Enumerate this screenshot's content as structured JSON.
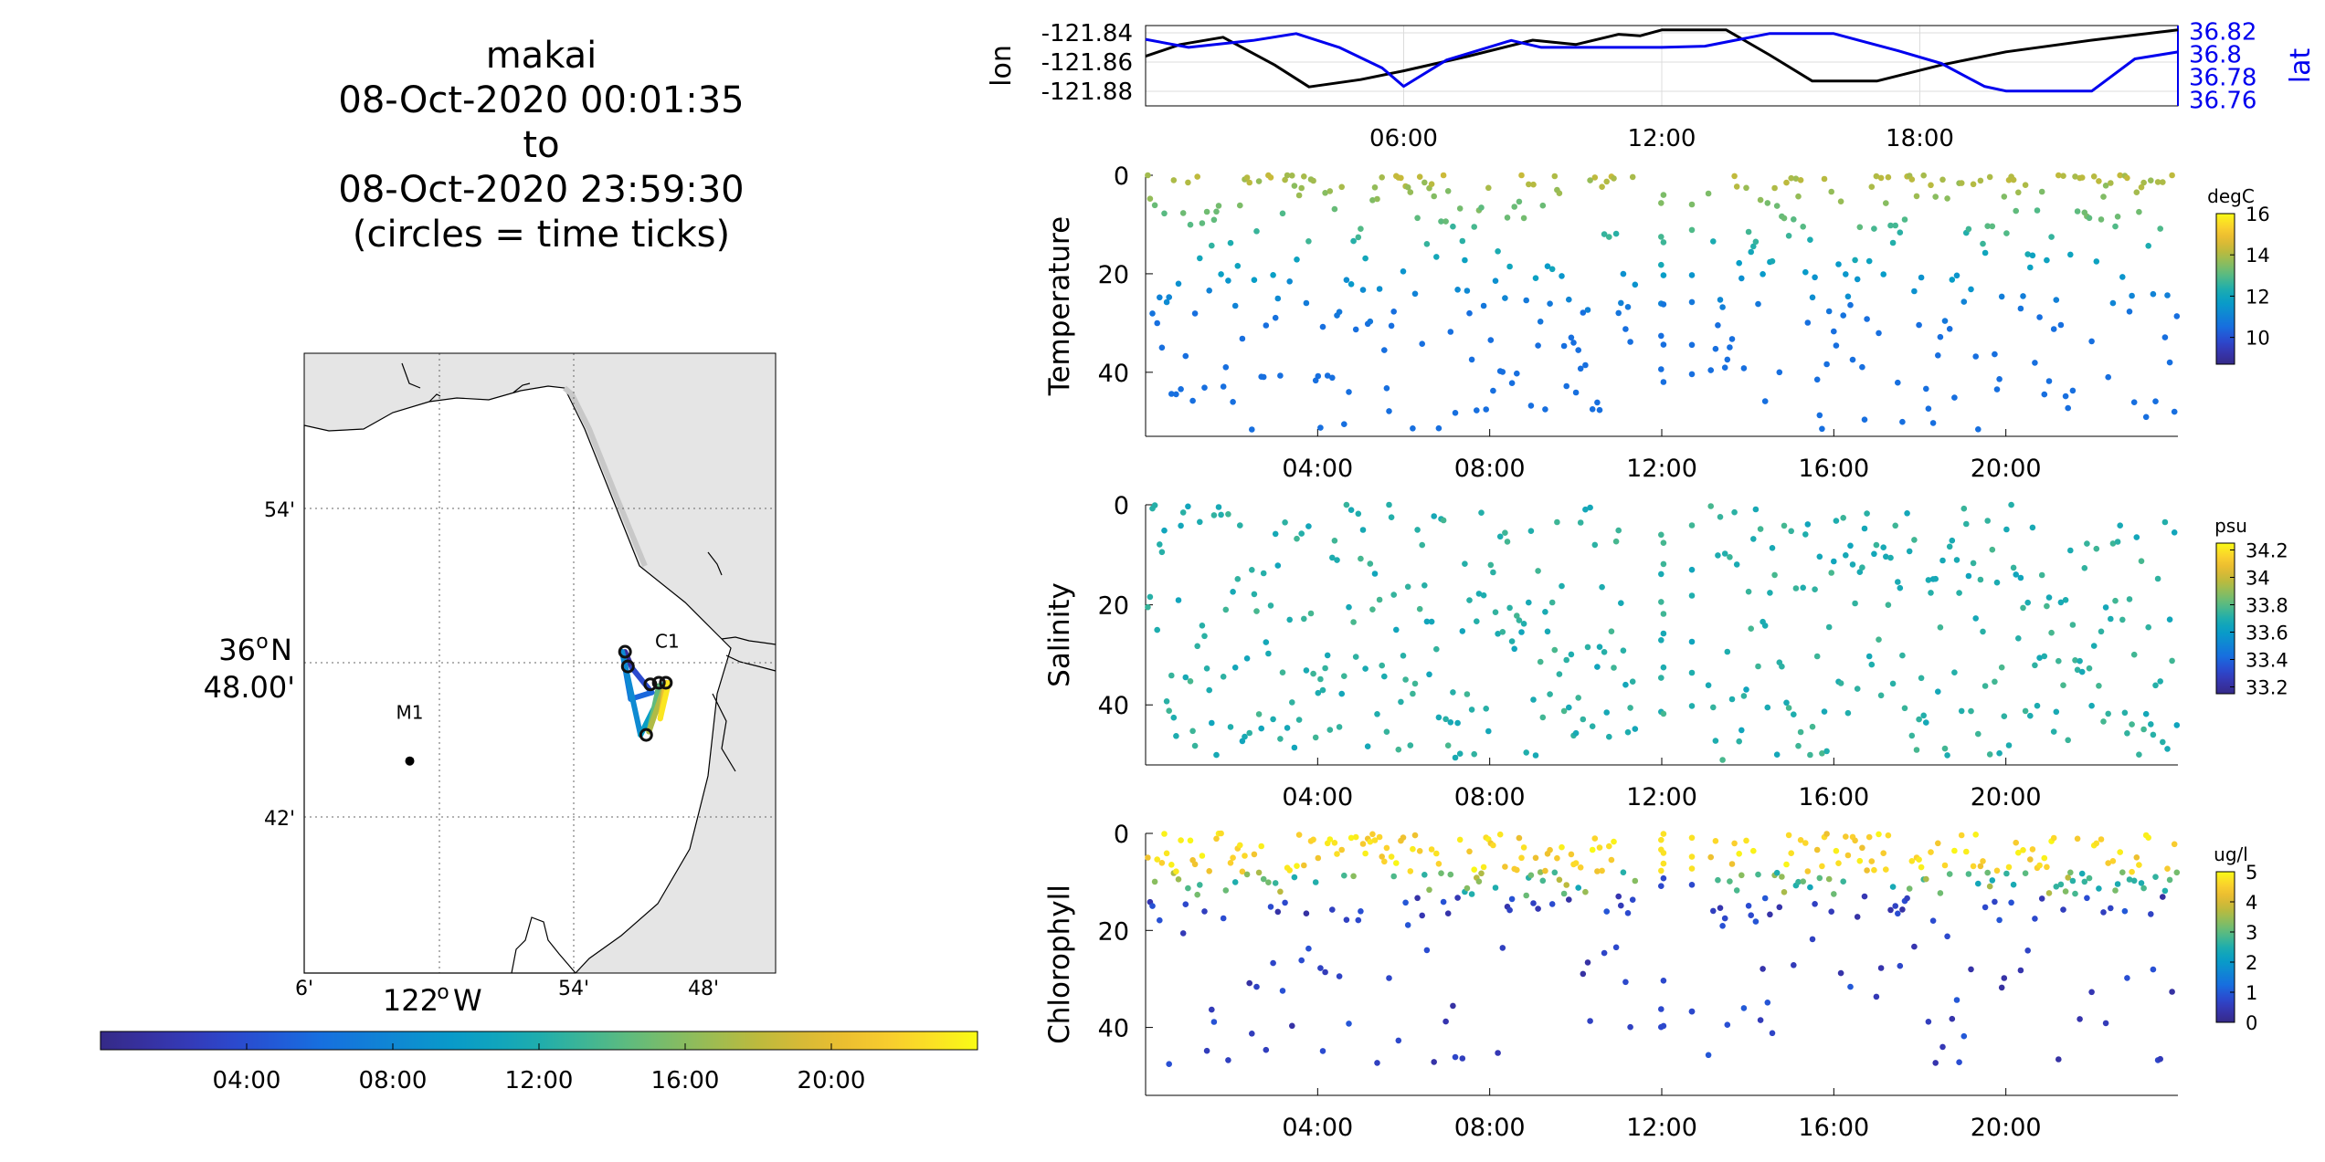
{
  "title": {
    "lines": [
      "makai",
      "08-Oct-2020 00:01:35",
      "to",
      "08-Oct-2020 23:59:30",
      "(circles = time ticks)"
    ]
  },
  "colors": {
    "lon_line": "#000000",
    "lat_line": "#0000ee",
    "map_land": "#e5e5e5",
    "map_sea": "#ffffff",
    "colormap": "parula"
  },
  "chart_data": [
    {
      "id": "map",
      "type": "scatter",
      "title": "",
      "x_ticks": [
        "6'",
        "54'",
        "48'"
      ],
      "x_degree_label": {
        "deg": "122",
        "hemi": "W"
      },
      "y_ticks": [
        "54'",
        "42'"
      ],
      "y_degree_label": {
        "deg": "36",
        "hemi": "N",
        "min": "48.00'"
      },
      "stations": [
        {
          "name": "M1",
          "lon": -122.03,
          "lat": 36.75
        },
        {
          "name": "C1",
          "lon": -121.847,
          "lat": 36.797
        }
      ],
      "track": [
        {
          "lon": -121.877,
          "lat": 36.817,
          "hours": 0
        },
        {
          "lon": -121.872,
          "lat": 36.807,
          "hours": 2.5
        },
        {
          "lon": -121.858,
          "lat": 36.792,
          "hours": 5
        },
        {
          "lon": -121.873,
          "lat": 36.788,
          "hours": 6.2
        },
        {
          "lon": -121.879,
          "lat": 36.817,
          "hours": 7.5
        },
        {
          "lon": -121.866,
          "lat": 36.766,
          "hours": 9
        },
        {
          "lon": -121.848,
          "lat": 36.797,
          "hours": 11
        },
        {
          "lon": -121.853,
          "lat": 36.796,
          "hours": 13
        },
        {
          "lon": -121.86,
          "lat": 36.768,
          "hours": 16
        },
        {
          "lon": -121.848,
          "lat": 36.798,
          "hours": 19
        },
        {
          "lon": -121.852,
          "lat": 36.776,
          "hours": 22
        },
        {
          "lon": -121.846,
          "lat": 36.798,
          "hours": 24
        }
      ],
      "time_ticks": [
        {
          "lon": -121.877,
          "lat": 36.817
        },
        {
          "lon": -121.875,
          "lat": 36.808
        },
        {
          "lon": -121.859,
          "lat": 36.797
        },
        {
          "lon": -121.853,
          "lat": 36.798
        },
        {
          "lon": -121.848,
          "lat": 36.798
        },
        {
          "lon": -121.862,
          "lat": 36.766
        }
      ],
      "colorbar_ticks": [
        "04:00",
        "08:00",
        "12:00",
        "16:00",
        "20:00"
      ],
      "colorbar_range_hours": [
        0,
        24
      ]
    },
    {
      "id": "position",
      "type": "line",
      "x_ticks": [
        "06:00",
        "12:00",
        "18:00"
      ],
      "xlim_hours": [
        0,
        24
      ],
      "ylabel": "lon",
      "ylabel_right": "lat",
      "y_ticks": [
        "-121.84",
        "-121.86",
        "-121.88"
      ],
      "y_ticks_right": [
        "36.82",
        "36.8",
        "36.78",
        "36.76"
      ],
      "ylim": [
        -121.89,
        -121.835
      ],
      "ylim_right": [
        36.755,
        36.825
      ],
      "series": [
        {
          "axis": "left",
          "points": [
            [
              0,
              -121.856
            ],
            [
              0.8,
              -121.848
            ],
            [
              1.8,
              -121.843
            ],
            [
              3,
              -121.862
            ],
            [
              3.8,
              -121.877
            ],
            [
              5,
              -121.872
            ],
            [
              6,
              -121.866
            ],
            [
              7.5,
              -121.856
            ],
            [
              9,
              -121.845
            ],
            [
              10,
              -121.848
            ],
            [
              11,
              -121.841
            ],
            [
              11.5,
              -121.842
            ],
            [
              12,
              -121.838
            ],
            [
              13.5,
              -121.838
            ],
            [
              14.5,
              -121.855
            ],
            [
              15.5,
              -121.873
            ],
            [
              17,
              -121.873
            ],
            [
              18.5,
              -121.862
            ],
            [
              20,
              -121.853
            ],
            [
              22,
              -121.845
            ],
            [
              24,
              -121.838
            ]
          ]
        },
        {
          "axis": "right",
          "points": [
            [
              0,
              36.813
            ],
            [
              1,
              36.806
            ],
            [
              2.5,
              36.812
            ],
            [
              3.5,
              36.818
            ],
            [
              4.5,
              36.806
            ],
            [
              5.5,
              36.788
            ],
            [
              6,
              36.772
            ],
            [
              7,
              36.795
            ],
            [
              8.5,
              36.812
            ],
            [
              9.2,
              36.806
            ],
            [
              10,
              36.806
            ],
            [
              12,
              36.806
            ],
            [
              13,
              36.807
            ],
            [
              14.5,
              36.818
            ],
            [
              16,
              36.818
            ],
            [
              17.5,
              36.803
            ],
            [
              18.5,
              36.792
            ],
            [
              19.5,
              36.772
            ],
            [
              20,
              36.768
            ],
            [
              22,
              36.768
            ],
            [
              23,
              36.796
            ],
            [
              24,
              36.802
            ]
          ]
        }
      ]
    },
    {
      "id": "temperature",
      "type": "scatter",
      "ylabel": "Temperature",
      "y_ticks": [
        "0",
        "20",
        "40"
      ],
      "ylim": [
        0,
        53
      ],
      "xlim_hours": [
        0,
        24
      ],
      "x_ticks": [
        "04:00",
        "08:00",
        "12:00",
        "16:00",
        "20:00"
      ],
      "colorbar": {
        "label": "degC",
        "ticks": [
          "16",
          "14",
          "12",
          "10"
        ],
        "range": [
          8.7,
          16
        ]
      }
    },
    {
      "id": "salinity",
      "type": "scatter",
      "ylabel": "Salinity",
      "y_ticks": [
        "0",
        "20",
        "40"
      ],
      "ylim": [
        0,
        52
      ],
      "xlim_hours": [
        0,
        24
      ],
      "x_ticks": [
        "04:00",
        "08:00",
        "12:00",
        "16:00",
        "20:00"
      ],
      "colorbar": {
        "label": "psu",
        "ticks": [
          "34.2",
          "34",
          "33.8",
          "33.6",
          "33.4",
          "33.2"
        ],
        "range": [
          33.15,
          34.25
        ]
      }
    },
    {
      "id": "chlorophyll",
      "type": "scatter",
      "ylabel": "Chlorophyll",
      "y_ticks": [
        "0",
        "20",
        "40"
      ],
      "ylim": [
        0,
        54
      ],
      "xlim_hours": [
        0,
        24
      ],
      "x_ticks": [
        "04:00",
        "08:00",
        "12:00",
        "16:00",
        "20:00"
      ],
      "colorbar": {
        "label": "ug/l",
        "ticks": [
          "5",
          "4",
          "3",
          "2",
          "1",
          "0"
        ],
        "range": [
          0,
          5
        ]
      }
    }
  ]
}
